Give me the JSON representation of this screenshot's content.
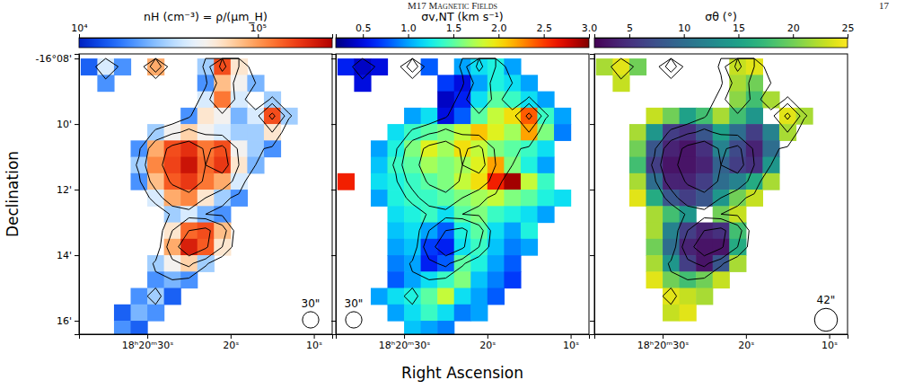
{
  "chart_data": {
    "type": "heatmap",
    "title": "M17 Magnetic Fields",
    "page": 17,
    "xlabel": "Right Ascension",
    "ylabel": "Declination",
    "xlim": [
      38.2,
      7.8
    ],
    "ylim": [
      16.41,
      7.86
    ],
    "xticks": [
      {
        "value": 30,
        "label": "18ʰ20ᵐ30ˢ"
      },
      {
        "value": 20,
        "label": "20ˢ"
      },
      {
        "value": 10,
        "label": "10ˢ"
      }
    ],
    "yticks": [
      {
        "value": 8,
        "label": "-16°08'"
      },
      {
        "value": 10,
        "label": "10'"
      },
      {
        "value": 12,
        "label": "12'"
      },
      {
        "value": 14,
        "label": "14'"
      },
      {
        "value": 16,
        "label": "16'"
      }
    ],
    "x": [
      37,
      35,
      33,
      31,
      29,
      27,
      25,
      23,
      21,
      19,
      17,
      15,
      13,
      11,
      9
    ],
    "y": [
      8.25,
      8.75,
      9.25,
      9.75,
      10.25,
      10.75,
      11.25,
      11.75,
      12.25,
      12.75,
      13.25,
      13.75,
      14.25,
      14.75,
      15.25,
      15.75,
      16.25
    ],
    "contour_levels": [
      25000,
      60000,
      130000
    ],
    "panels": [
      {
        "colorbar_label": "nH (cm⁻³) = ρ/(μm_H)",
        "color": "coolwarm",
        "log": true,
        "color_range": [
          10000,
          260000
        ],
        "color_ticks": [
          {
            "value": 10000,
            "label": "10⁴"
          },
          {
            "value": 100000,
            "label": "10⁵"
          }
        ],
        "beam": {
          "value": 30,
          "label": "30\""
        },
        "values": [
          [
            15000,
            40000,
            20000,
            null,
            90000,
            null,
            null,
            30000,
            150000,
            60000,
            null,
            null,
            null,
            null,
            null
          ],
          [
            null,
            20000,
            null,
            null,
            null,
            null,
            null,
            20000,
            80000,
            50000,
            25000,
            null,
            null,
            null,
            null
          ],
          [
            null,
            null,
            null,
            null,
            null,
            null,
            null,
            40000,
            120000,
            40000,
            null,
            30000,
            null,
            null,
            null
          ],
          [
            null,
            null,
            null,
            null,
            null,
            null,
            20000,
            60000,
            50000,
            25000,
            40000,
            150000,
            30000,
            null,
            null
          ],
          [
            null,
            null,
            null,
            null,
            30000,
            50000,
            70000,
            50000,
            40000,
            30000,
            30000,
            60000,
            null,
            null,
            null
          ],
          [
            null,
            null,
            null,
            20000,
            90000,
            150000,
            180000,
            120000,
            150000,
            50000,
            30000,
            20000,
            null,
            null,
            null
          ],
          [
            null,
            null,
            null,
            30000,
            110000,
            160000,
            220000,
            130000,
            170000,
            60000,
            25000,
            null,
            null,
            null,
            null
          ],
          [
            null,
            null,
            null,
            20000,
            80000,
            140000,
            170000,
            120000,
            90000,
            40000,
            null,
            null,
            null,
            null,
            null
          ],
          [
            null,
            null,
            null,
            null,
            40000,
            90000,
            110000,
            60000,
            30000,
            20000,
            null,
            null,
            null,
            null,
            null
          ],
          [
            null,
            null,
            null,
            null,
            null,
            30000,
            40000,
            25000,
            20000,
            null,
            null,
            null,
            null,
            null,
            null
          ],
          [
            null,
            null,
            null,
            null,
            null,
            60000,
            130000,
            150000,
            80000,
            null,
            null,
            null,
            null,
            null,
            null
          ],
          [
            null,
            null,
            null,
            null,
            null,
            90000,
            200000,
            140000,
            60000,
            null,
            null,
            null,
            null,
            null,
            null
          ],
          [
            null,
            null,
            null,
            null,
            30000,
            50000,
            70000,
            30000,
            null,
            null,
            null,
            null,
            null,
            null,
            null
          ],
          [
            null,
            null,
            null,
            null,
            20000,
            25000,
            20000,
            null,
            null,
            null,
            null,
            null,
            null,
            null,
            null
          ],
          [
            null,
            null,
            null,
            20000,
            30000,
            15000,
            null,
            null,
            null,
            null,
            null,
            null,
            null,
            null,
            null
          ],
          [
            null,
            null,
            15000,
            25000,
            20000,
            null,
            null,
            null,
            null,
            null,
            null,
            null,
            null,
            null,
            null
          ],
          [
            null,
            null,
            20000,
            15000,
            null,
            null,
            null,
            null,
            null,
            null,
            null,
            null,
            null,
            null,
            null
          ]
        ]
      },
      {
        "colorbar_label": "σv,NT (km s⁻¹)",
        "color": "jet",
        "color_range": [
          0.2,
          3.0
        ],
        "color_ticks": [
          0.5,
          {
            "value": 1,
            "label": "1.0"
          },
          1.5,
          {
            "value": 2,
            "label": "2.0"
          },
          2.5,
          {
            "value": 3,
            "label": "3.0"
          }
        ],
        "beam": {
          "value": 30,
          "label": "30\""
        },
        "values": [
          [
            0.6,
            0.4,
            0.5,
            null,
            null,
            0.8,
            null,
            1.0,
            1.2,
            1.3,
            1.0,
            null,
            null,
            null,
            null
          ],
          [
            null,
            0.5,
            null,
            null,
            null,
            null,
            0.7,
            0.5,
            1.0,
            1.3,
            1.2,
            1.0,
            null,
            null,
            null
          ],
          [
            null,
            null,
            null,
            null,
            null,
            null,
            0.4,
            0.6,
            1.2,
            1.5,
            1.4,
            1.2,
            1.0,
            null,
            null
          ],
          [
            null,
            null,
            null,
            null,
            1.0,
            1.2,
            0.5,
            0.8,
            1.5,
            1.8,
            2.0,
            2.4,
            1.4,
            1.0,
            null
          ],
          [
            null,
            null,
            null,
            1.2,
            1.4,
            1.5,
            1.6,
            1.8,
            2.1,
            1.9,
            1.7,
            2.2,
            1.6,
            0.9,
            null
          ],
          [
            null,
            null,
            1.0,
            1.3,
            1.6,
            1.9,
            1.7,
            2.0,
            1.8,
            1.6,
            1.5,
            1.4,
            1.2,
            null,
            null
          ],
          [
            null,
            null,
            1.1,
            1.4,
            1.5,
            1.7,
            1.6,
            1.7,
            1.9,
            2.2,
            1.6,
            1.3,
            1.0,
            null,
            null
          ],
          [
            2.6,
            null,
            1.2,
            1.3,
            1.4,
            1.5,
            1.6,
            1.8,
            2.0,
            2.6,
            2.9,
            1.8,
            1.4,
            null,
            null
          ],
          [
            null,
            null,
            1.0,
            1.3,
            1.4,
            1.4,
            1.5,
            1.6,
            1.7,
            1.8,
            1.6,
            1.5,
            1.3,
            1.2,
            null
          ],
          [
            null,
            null,
            null,
            1.2,
            1.3,
            1.4,
            1.2,
            1.5,
            1.6,
            1.4,
            1.3,
            1.2,
            1.0,
            null,
            null
          ],
          [
            null,
            null,
            null,
            1.1,
            1.2,
            1.0,
            0.8,
            1.3,
            1.5,
            1.2,
            1.0,
            1.3,
            null,
            null,
            null
          ],
          [
            null,
            null,
            null,
            1.0,
            1.1,
            0.7,
            0.6,
            1.2,
            1.4,
            1.1,
            0.9,
            1.0,
            null,
            null,
            null
          ],
          [
            null,
            null,
            null,
            0.9,
            1.0,
            0.6,
            0.8,
            1.5,
            1.3,
            1.0,
            0.8,
            null,
            null,
            null,
            null
          ],
          [
            null,
            null,
            null,
            0.8,
            1.0,
            1.2,
            1.4,
            1.6,
            1.1,
            0.9,
            0.7,
            null,
            null,
            null,
            null
          ],
          [
            null,
            null,
            1.0,
            1.2,
            1.3,
            1.5,
            1.8,
            1.2,
            1.0,
            0.8,
            null,
            null,
            null,
            null,
            null
          ],
          [
            null,
            null,
            null,
            1.0,
            1.2,
            1.4,
            1.2,
            0.9,
            1.0,
            null,
            null,
            null,
            null,
            null,
            null
          ],
          [
            null,
            null,
            null,
            null,
            1.1,
            1.0,
            0.9,
            null,
            null,
            null,
            null,
            null,
            null,
            null,
            null
          ]
        ]
      },
      {
        "colorbar_label": "σθ (°)",
        "color": "viridis",
        "color_range": [
          1.8,
          25
        ],
        "color_ticks": [
          5,
          10,
          15,
          20,
          25
        ],
        "beam": {
          "value": 42,
          "label": "42\""
        },
        "values": [
          [
            22,
            24,
            20,
            null,
            null,
            null,
            null,
            null,
            23,
            24,
            null,
            null,
            null,
            null,
            null
          ],
          [
            null,
            23,
            null,
            null,
            null,
            null,
            null,
            null,
            22,
            20,
            null,
            null,
            null,
            null,
            null
          ],
          [
            null,
            null,
            null,
            null,
            null,
            null,
            null,
            null,
            21,
            18,
            22,
            null,
            null,
            null,
            null
          ],
          [
            null,
            null,
            null,
            23,
            20,
            15,
            18,
            22,
            18,
            14,
            null,
            24,
            22,
            null,
            null
          ],
          [
            null,
            null,
            22,
            14,
            6,
            5,
            8,
            15,
            10,
            6,
            12,
            22,
            null,
            null,
            null
          ],
          [
            null,
            null,
            20,
            8,
            4,
            3,
            5,
            12,
            7,
            4,
            10,
            null,
            null,
            null,
            null
          ],
          [
            null,
            null,
            18,
            6,
            3,
            3,
            4,
            9,
            6,
            5,
            14,
            null,
            null,
            null,
            null
          ],
          [
            null,
            null,
            22,
            10,
            4,
            4,
            6,
            10,
            12,
            16,
            22,
            null,
            null,
            null,
            null
          ],
          [
            null,
            null,
            24,
            16,
            8,
            6,
            8,
            14,
            20,
            23,
            null,
            null,
            null,
            null,
            null
          ],
          [
            null,
            null,
            null,
            22,
            18,
            14,
            null,
            20,
            23,
            null,
            null,
            null,
            null,
            null,
            null
          ],
          [
            null,
            null,
            null,
            22,
            12,
            6,
            4,
            5,
            18,
            null,
            null,
            null,
            null,
            null,
            null
          ],
          [
            null,
            null,
            null,
            20,
            10,
            4,
            3,
            3,
            16,
            null,
            null,
            null,
            null,
            null,
            null
          ],
          [
            null,
            null,
            null,
            22,
            14,
            6,
            3,
            8,
            22,
            null,
            null,
            null,
            null,
            null,
            null
          ],
          [
            null,
            null,
            null,
            24,
            20,
            18,
            20,
            23,
            null,
            null,
            null,
            null,
            null,
            null,
            null
          ],
          [
            null,
            null,
            null,
            null,
            24,
            23,
            22,
            null,
            null,
            null,
            null,
            null,
            null,
            null,
            null
          ],
          [
            null,
            null,
            null,
            null,
            23,
            24,
            null,
            null,
            null,
            null,
            null,
            null,
            null,
            null,
            null
          ],
          [
            null,
            null,
            null,
            null,
            null,
            null,
            null,
            null,
            null,
            null,
            null,
            null,
            null,
            null,
            null
          ]
        ]
      }
    ]
  }
}
